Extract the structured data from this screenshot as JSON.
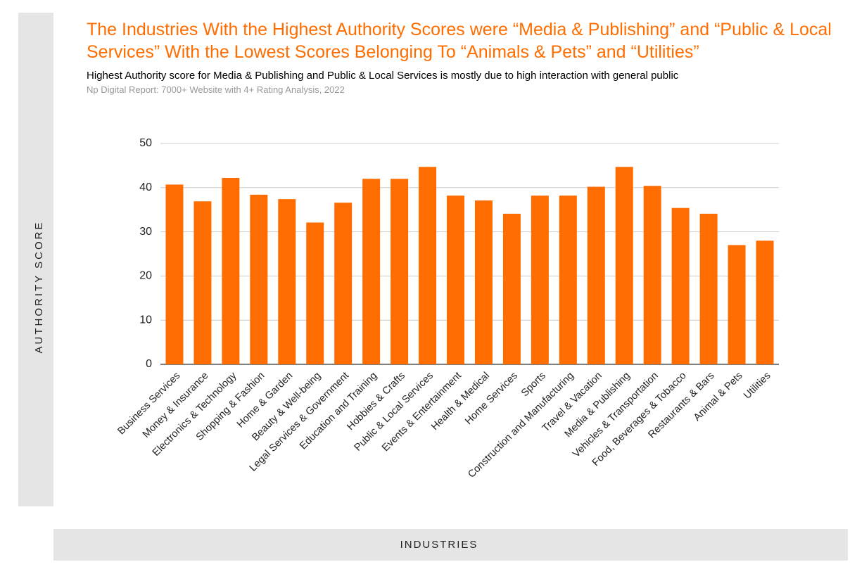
{
  "chart_data": {
    "type": "bar",
    "title": "The Industries With the Highest Authority Scores were “Media & Publishing” and “Public & Local Services” With the Lowest Scores Belonging To “Animals & Pets” and “Utilities”",
    "subtitle": "Highest Authority score for Media & Publishing and Public & Local Services is mostly due to high interaction with general public",
    "source": "Np Digital Report: 7000+ Website with 4+ Rating Analysis, 2022",
    "y_label": "AUTHORITY SCORE",
    "x_label": "INDUSTRIES",
    "categories": [
      "Business Services",
      "Money & Insurance",
      "Electronics & Technology",
      "Shopping & Fashion",
      "Home & Garden",
      "Beauty & Well-being",
      "Legal Services & Government",
      "Education and Training",
      "Hobbies & Crafts",
      "Public & Local Services",
      "Events & Entertainment",
      "Health & Medical",
      "Home Services",
      "Sports",
      "Construction and Manufacturing",
      "Travel & Vacation",
      "Media & Publishing",
      "Vehicles & Transportation",
      "Food, Beverages & Tobacco",
      "Restaurants & Bars",
      "Animal & Pets",
      "Utilities"
    ],
    "values": [
      40.7,
      36.9,
      42.2,
      38.4,
      37.4,
      32.1,
      36.6,
      42.0,
      42.0,
      44.7,
      38.2,
      37.1,
      34.1,
      38.2,
      38.2,
      40.2,
      44.7,
      40.4,
      35.4,
      34.1,
      27.0,
      28.0
    ],
    "color": "#ff6d01",
    "ylim": [
      0,
      50
    ],
    "yticks": [
      0,
      10,
      20,
      30,
      40,
      50
    ],
    "grid": true
  }
}
